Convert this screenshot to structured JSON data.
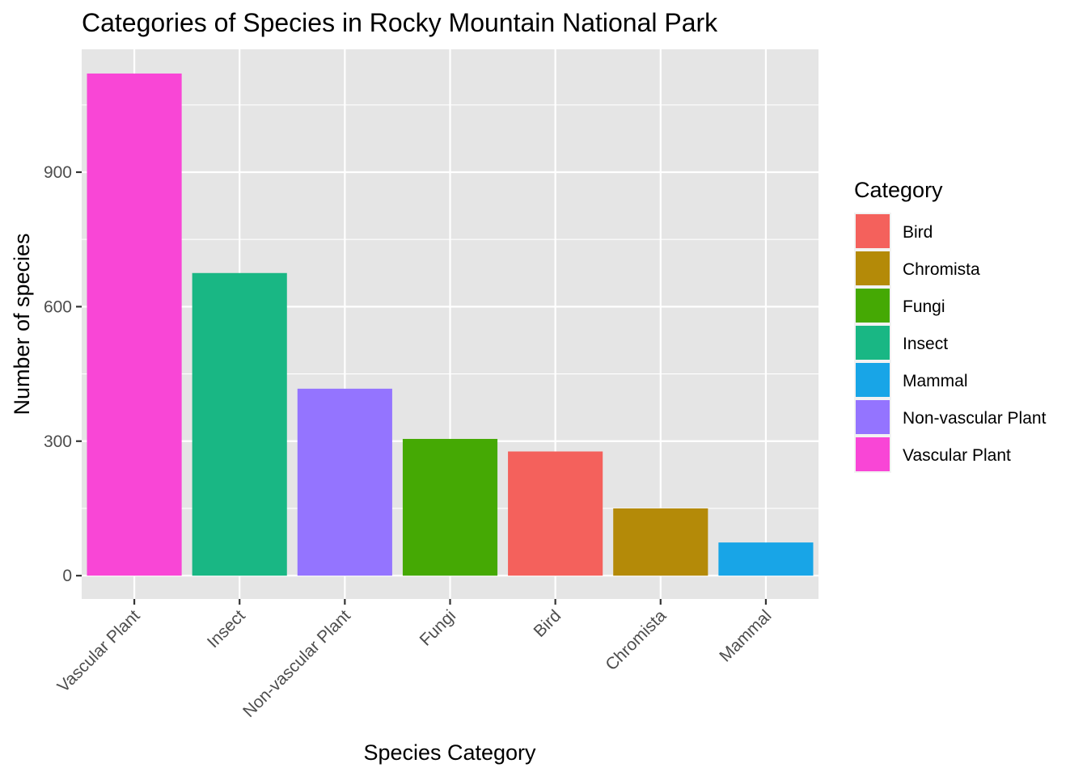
{
  "chart_data": {
    "type": "bar",
    "title": "Categories of Species in Rocky Mountain National Park",
    "xlabel": "Species Category",
    "ylabel": "Number of species",
    "categories": [
      "Vascular Plant",
      "Insect",
      "Non-vascular Plant",
      "Fungi",
      "Bird",
      "Chromista",
      "Mammal"
    ],
    "values": [
      1120,
      675,
      417,
      305,
      277,
      150,
      74
    ],
    "bar_colors": [
      "#F946D6",
      "#19B784",
      "#9474FF",
      "#45A904",
      "#F4615C",
      "#B48A08",
      "#18A5E7"
    ],
    "ylim": [
      -52,
      1174
    ],
    "yticks": [
      0,
      300,
      600,
      900
    ],
    "grid": true,
    "legend": {
      "title": "Category",
      "placement": "right",
      "entries": [
        {
          "label": "Bird",
          "color": "#F4615C"
        },
        {
          "label": "Chromista",
          "color": "#B48A08"
        },
        {
          "label": "Fungi",
          "color": "#45A904"
        },
        {
          "label": "Insect",
          "color": "#19B784"
        },
        {
          "label": "Mammal",
          "color": "#18A5E7"
        },
        {
          "label": "Non-vascular Plant",
          "color": "#9474FF"
        },
        {
          "label": "Vascular Plant",
          "color": "#F946D6"
        }
      ]
    },
    "panel_background": "#E5E5E5",
    "grid_color": "#FFFFFF"
  }
}
